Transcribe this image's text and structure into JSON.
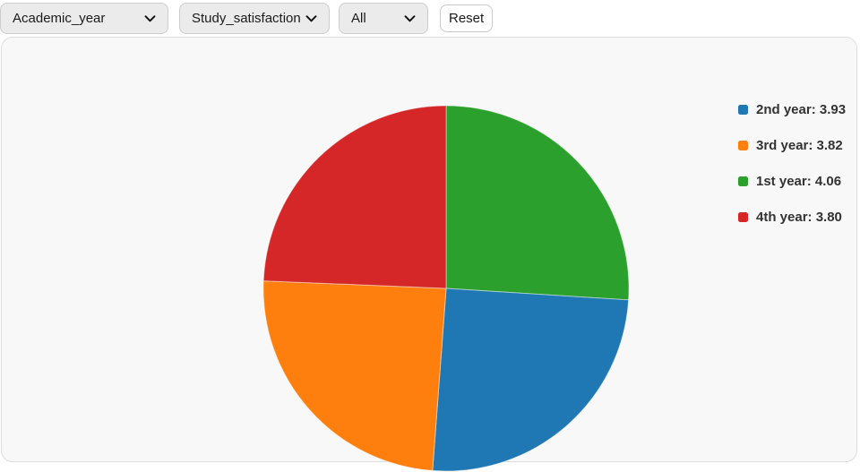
{
  "toolbar": {
    "dropdowns": [
      {
        "name": "axis",
        "value": "Academic_year"
      },
      {
        "name": "metric",
        "value": "Study_satisfaction"
      },
      {
        "name": "filter",
        "value": "All"
      }
    ],
    "reset_label": "Reset"
  },
  "colors": {
    "panel_background": "#f8f8f8",
    "toolbar_background": "#ffffff",
    "dropdown_background": "#ebebeb",
    "legend_text": "#333333"
  },
  "chart_data": {
    "type": "pie",
    "title": "",
    "start_angle_deg": 0,
    "direction": "clockwise",
    "slices": [
      {
        "label": "1st year",
        "value": 4.06,
        "color": "#2ca02c"
      },
      {
        "label": "2nd year",
        "value": 3.93,
        "color": "#1f77b4"
      },
      {
        "label": "3rd year",
        "value": 3.82,
        "color": "#ff7f0e"
      },
      {
        "label": "4th year",
        "value": 3.8,
        "color": "#d62728"
      }
    ],
    "legend": {
      "position": "right",
      "items": [
        {
          "slice": "2nd year",
          "text": "2nd year: 3.93",
          "color": "#1f77b4"
        },
        {
          "slice": "3rd year",
          "text": "3rd year: 3.82",
          "color": "#ff7f0e"
        },
        {
          "slice": "1st year",
          "text": "1st year: 4.06",
          "color": "#2ca02c"
        },
        {
          "slice": "4th year",
          "text": "4th year: 3.80",
          "color": "#d62728"
        }
      ]
    }
  }
}
